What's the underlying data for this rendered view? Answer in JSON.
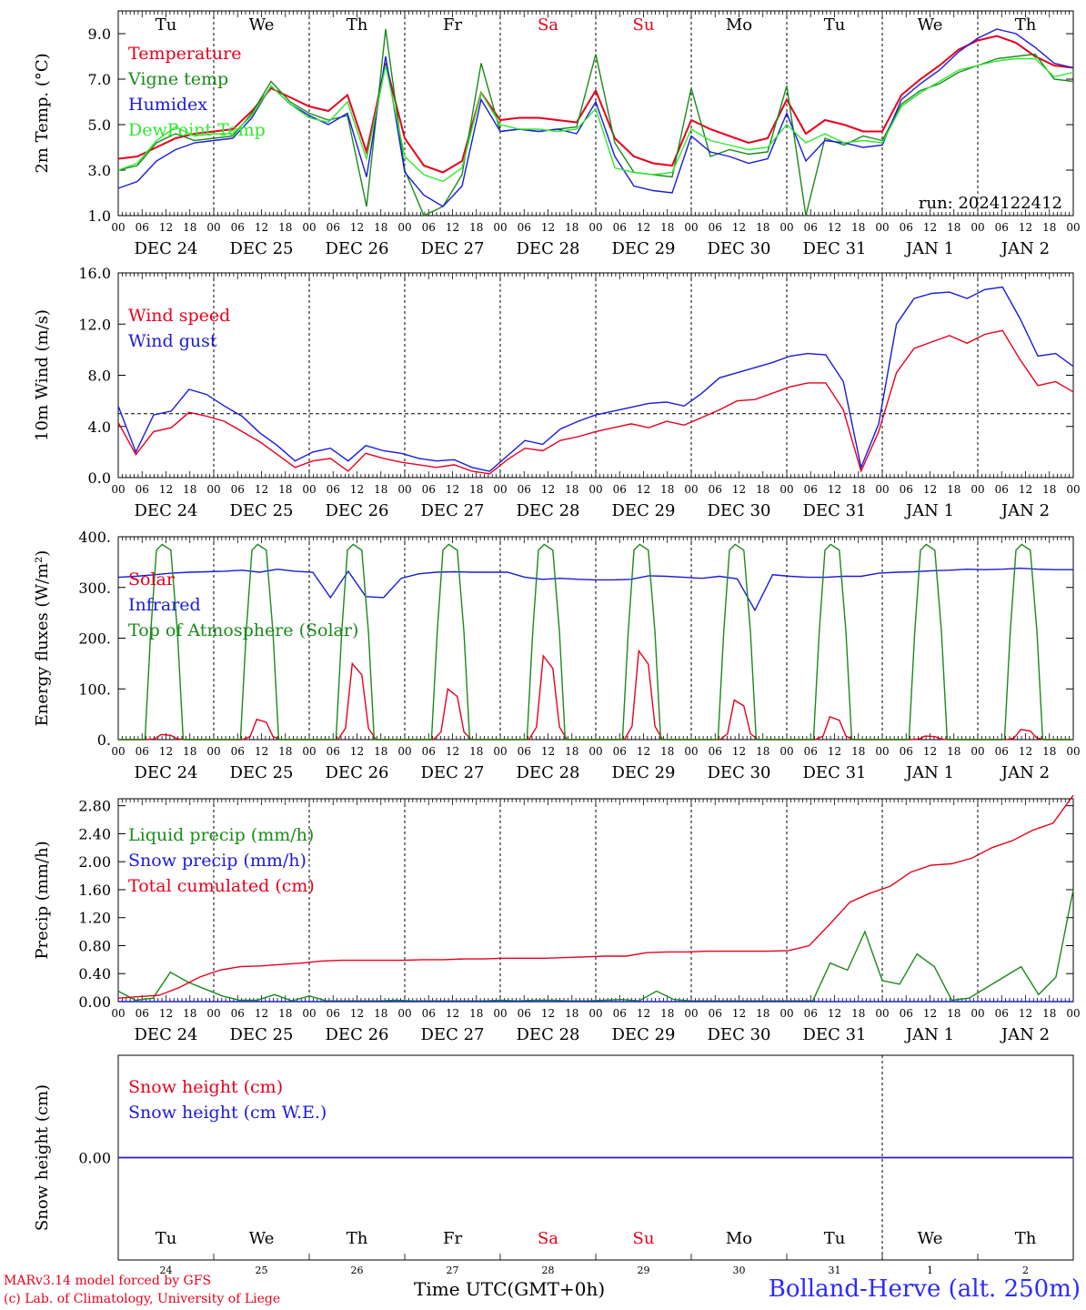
{
  "footer": {
    "model_line": "MARv3.14 model forced by GFS",
    "credit_line": "(c) Lab. of Climatology, University of Liege",
    "time_label": "Time UTC(GMT+0h)",
    "station": "Bolland-Herve (alt. 250m)"
  },
  "days": {
    "weekday_labels": [
      "Tu",
      "We",
      "Th",
      "Fr",
      "Sa",
      "Su",
      "Mo",
      "Tu",
      "We",
      "Th"
    ],
    "weekend_color": "#e8001c",
    "weekend_indexes": [
      4,
      5
    ],
    "date_labels": [
      "DEC 24",
      "DEC 25",
      "DEC 26",
      "DEC 27",
      "DEC 28",
      "DEC 29",
      "DEC 30",
      "DEC 31",
      "JAN  1",
      "JAN  2"
    ],
    "hour_ticks": [
      "00",
      "06",
      "12",
      "18"
    ],
    "final_tick": "00",
    "bottom_day_numbers": [
      "24",
      "25",
      "26",
      "27",
      "28",
      "29",
      "30",
      "31",
      "1",
      "2"
    ]
  },
  "chart_data": [
    {
      "type": "line",
      "ylabel": "2m Temp. (°C)",
      "ylim": [
        1.0,
        10.0
      ],
      "yticks": [
        "1.0",
        "3.0",
        "5.0",
        "7.0",
        "9.0"
      ],
      "annotation": "run: 2024122412",
      "x_step_hours": 6,
      "series": [
        {
          "name": "Temperature",
          "color": "#e8001c",
          "values": [
            3.5,
            3.6,
            4.0,
            4.4,
            4.6,
            4.7,
            4.8,
            5.6,
            6.6,
            6.2,
            5.8,
            5.6,
            6.3,
            3.8,
            7.7,
            4.4,
            3.2,
            2.9,
            3.4,
            6.4,
            5.2,
            5.3,
            5.3,
            5.2,
            5.1,
            6.5,
            4.4,
            3.6,
            3.3,
            3.2,
            5.2,
            4.8,
            4.5,
            4.2,
            4.4,
            6.1,
            4.6,
            5.2,
            5.0,
            4.7,
            4.7,
            6.3,
            7.0,
            7.6,
            8.3,
            8.7,
            8.9,
            8.6,
            8.0,
            7.6,
            7.5
          ]
        },
        {
          "name": "Vigne temp",
          "color": "#1a8a1a",
          "values": [
            3.0,
            3.2,
            4.2,
            4.6,
            4.3,
            4.4,
            4.5,
            5.5,
            6.9,
            6.0,
            5.5,
            5.2,
            5.4,
            1.4,
            9.2,
            3.0,
            1.0,
            1.4,
            2.8,
            7.7,
            4.7,
            4.8,
            4.7,
            4.8,
            4.9,
            8.1,
            4.2,
            2.9,
            2.8,
            2.7,
            6.6,
            3.6,
            3.9,
            3.7,
            3.8,
            6.7,
            1.0,
            4.4,
            4.1,
            4.5,
            4.3,
            5.9,
            6.5,
            6.8,
            7.3,
            7.6,
            7.9,
            8.0,
            8.1,
            7.0,
            6.9
          ]
        },
        {
          "name": "Humidex",
          "color": "#1a1adc",
          "values": [
            2.2,
            2.5,
            3.4,
            3.9,
            4.2,
            4.3,
            4.4,
            5.3,
            6.7,
            5.9,
            5.4,
            5.0,
            5.5,
            2.7,
            8.0,
            2.9,
            1.9,
            1.4,
            2.3,
            6.1,
            4.7,
            4.8,
            4.7,
            4.8,
            4.6,
            6.0,
            3.6,
            2.3,
            2.1,
            2.0,
            4.5,
            3.8,
            3.6,
            3.3,
            3.5,
            5.5,
            3.4,
            4.3,
            4.2,
            4.0,
            4.1,
            6.1,
            6.8,
            7.4,
            8.2,
            8.8,
            9.2,
            9.0,
            8.4,
            7.7,
            7.5
          ]
        },
        {
          "name": "DewPoint Temp",
          "color": "#2ee82e",
          "values": [
            3.0,
            3.3,
            4.3,
            4.9,
            4.5,
            4.6,
            4.6,
            5.4,
            6.7,
            5.9,
            5.3,
            5.1,
            6.0,
            3.5,
            7.6,
            3.6,
            2.8,
            2.5,
            3.1,
            6.4,
            5.0,
            4.8,
            4.8,
            4.7,
            4.8,
            5.7,
            3.1,
            2.9,
            2.8,
            2.9,
            4.8,
            4.3,
            4.1,
            3.9,
            4.0,
            5.0,
            4.2,
            4.6,
            4.2,
            4.3,
            4.2,
            5.8,
            6.4,
            6.9,
            7.4,
            7.6,
            7.8,
            7.9,
            7.9,
            7.1,
            7.3
          ]
        }
      ]
    },
    {
      "type": "line",
      "ylabel": "10m Wind (m/s)",
      "ylim": [
        0.0,
        16.0
      ],
      "yticks": [
        "0.0",
        "4.0",
        "8.0",
        "12.0",
        "16.0"
      ],
      "reference_line": 5.0,
      "x_step_hours": 6,
      "series": [
        {
          "name": "Wind speed",
          "color": "#e8001c",
          "values": [
            4.3,
            1.8,
            3.6,
            3.9,
            5.1,
            4.8,
            4.4,
            3.6,
            2.8,
            1.8,
            0.8,
            1.3,
            1.5,
            0.5,
            1.9,
            1.5,
            1.2,
            1.0,
            0.8,
            1.0,
            0.5,
            0.3,
            1.4,
            2.3,
            2.1,
            2.9,
            3.2,
            3.6,
            3.9,
            4.2,
            3.9,
            4.4,
            4.1,
            4.7,
            5.3,
            6.0,
            6.1,
            6.6,
            7.1,
            7.4,
            7.4,
            5.3,
            0.5,
            3.6,
            8.2,
            10.1,
            10.6,
            11.1,
            10.5,
            11.2,
            11.5,
            9.2,
            7.2,
            7.5,
            6.7
          ]
        },
        {
          "name": "Wind gust",
          "color": "#1a1adc",
          "values": [
            5.6,
            2.0,
            4.9,
            5.2,
            6.9,
            6.5,
            5.6,
            4.8,
            3.5,
            2.5,
            1.3,
            2.0,
            2.3,
            1.3,
            2.5,
            2.1,
            1.9,
            1.5,
            1.3,
            1.4,
            0.8,
            0.5,
            1.7,
            2.9,
            2.6,
            3.8,
            4.4,
            4.9,
            5.2,
            5.5,
            5.8,
            5.9,
            5.6,
            6.6,
            7.8,
            8.2,
            8.6,
            9.0,
            9.5,
            9.7,
            9.6,
            7.5,
            0.8,
            4.2,
            12.0,
            14.0,
            14.4,
            14.5,
            14.0,
            14.7,
            14.9,
            12.4,
            9.5,
            9.7,
            8.7
          ]
        }
      ]
    },
    {
      "type": "line",
      "ylabel": "Energy fluxes (W/m²)",
      "ylim": [
        0,
        400
      ],
      "yticks": [
        "0.",
        "100.",
        "200.",
        "300.",
        "400."
      ],
      "x_step_hours": 6,
      "series": [
        {
          "name": "Solar",
          "color": "#e8001c",
          "peaks": [
            {
              "day": 0,
              "value": 10
            },
            {
              "day": 1,
              "value": 40
            },
            {
              "day": 2,
              "value": 150
            },
            {
              "day": 3,
              "value": 100
            },
            {
              "day": 4,
              "value": 165
            },
            {
              "day": 5,
              "value": 175
            },
            {
              "day": 6,
              "value": 78
            },
            {
              "day": 7,
              "value": 45
            },
            {
              "day": 8,
              "value": 7
            },
            {
              "day": 9,
              "value": 20
            }
          ]
        },
        {
          "name": "Infrared",
          "color": "#1a1adc",
          "values": [
            320,
            322,
            325,
            328,
            330,
            331,
            332,
            334,
            330,
            336,
            332,
            330,
            280,
            332,
            282,
            280,
            318,
            327,
            330,
            331,
            330,
            330,
            330,
            320,
            316,
            318,
            316,
            315,
            315,
            316,
            323,
            322,
            320,
            318,
            322,
            317,
            255,
            325,
            322,
            320,
            320,
            322,
            322,
            328,
            330,
            331,
            333,
            334,
            336,
            335,
            336,
            338,
            336,
            335,
            335
          ]
        },
        {
          "name": "Top of Atmosphere (Solar)",
          "color": "#1a8a1a",
          "peak": 385
        }
      ]
    },
    {
      "type": "line",
      "ylabel": "Precip (mm/h)",
      "ylim": [
        0.0,
        2.9
      ],
      "yticks": [
        "0.00",
        "0.40",
        "0.80",
        "1.20",
        "1.60",
        "2.00",
        "2.40",
        "2.80"
      ],
      "x_step_hours": 6,
      "series": [
        {
          "name": "Liquid precip (mm/h)",
          "color": "#1a8a1a",
          "values": [
            0.15,
            0.02,
            0.05,
            0.42,
            0.28,
            0.18,
            0.08,
            0.02,
            0.02,
            0.1,
            0.01,
            0.08,
            0.01,
            0.01,
            0.01,
            0.01,
            0.02,
            0.01,
            0.01,
            0.01,
            0.01,
            0.01,
            0.02,
            0.01,
            0.02,
            0.02,
            0.01,
            0.01,
            0.02,
            0.03,
            0.01,
            0.15,
            0.03,
            0.01,
            0.01,
            0.01,
            0.01,
            0.01,
            0.01,
            0.01,
            0.01,
            0.55,
            0.45,
            1.0,
            0.3,
            0.25,
            0.68,
            0.5,
            0.02,
            0.05,
            0.2,
            0.35,
            0.5,
            0.1,
            0.35,
            1.6
          ]
        },
        {
          "name": "Snow precip (mm/h)",
          "color": "#1a1adc",
          "values": [
            0,
            0,
            0,
            0,
            0,
            0,
            0,
            0,
            0,
            0,
            0,
            0,
            0,
            0,
            0,
            0,
            0,
            0,
            0,
            0,
            0,
            0,
            0,
            0,
            0,
            0,
            0,
            0,
            0,
            0,
            0,
            0,
            0,
            0,
            0,
            0,
            0,
            0,
            0,
            0,
            0,
            0,
            0,
            0,
            0,
            0,
            0,
            0,
            0,
            0,
            0,
            0,
            0,
            0,
            0,
            0
          ]
        },
        {
          "name": "Total cumulated (cm)",
          "color": "#e8001c",
          "values": [
            0.05,
            0.07,
            0.09,
            0.2,
            0.35,
            0.45,
            0.5,
            0.51,
            0.53,
            0.55,
            0.58,
            0.59,
            0.59,
            0.59,
            0.59,
            0.6,
            0.6,
            0.61,
            0.61,
            0.62,
            0.62,
            0.62,
            0.63,
            0.64,
            0.65,
            0.65,
            0.7,
            0.71,
            0.71,
            0.72,
            0.72,
            0.72,
            0.72,
            0.73,
            0.8,
            1.1,
            1.42,
            1.55,
            1.65,
            1.85,
            1.95,
            1.97,
            2.05,
            2.2,
            2.3,
            2.45,
            2.55,
            2.95
          ]
        }
      ]
    },
    {
      "type": "line",
      "ylabel": "Snow height (cm)",
      "ylim": [
        -1.0,
        1.0
      ],
      "yticks": [
        "0.00"
      ],
      "series": [
        {
          "name": "Snow height (cm)",
          "color": "#e8001c",
          "values": [
            0,
            0
          ]
        },
        {
          "name": "Snow height (cm W.E.)",
          "color": "#1a1adc",
          "values": [
            0,
            0
          ]
        }
      ]
    }
  ]
}
